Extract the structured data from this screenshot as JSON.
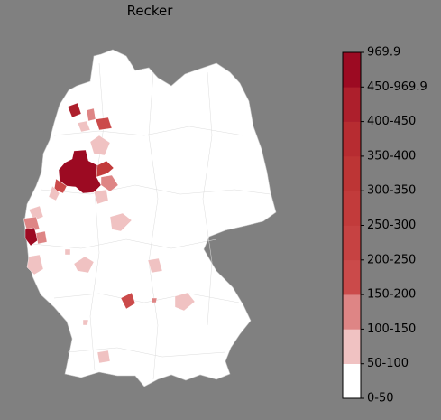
{
  "title": "Recker",
  "colorbar": {
    "ticks": [
      "0-50",
      "50-100",
      "100-150",
      "150-200",
      "200-250",
      "250-300",
      "300-350",
      "350-400",
      "400-450",
      "450-969.9",
      "969.9"
    ],
    "colors": [
      "#ffffff",
      "#f0c2c2",
      "#de8585",
      "#cb4a4a",
      "#c64242",
      "#c23b3b",
      "#bd3535",
      "#b72c31",
      "#ad1f2c",
      "#9c0a22"
    ]
  }
}
